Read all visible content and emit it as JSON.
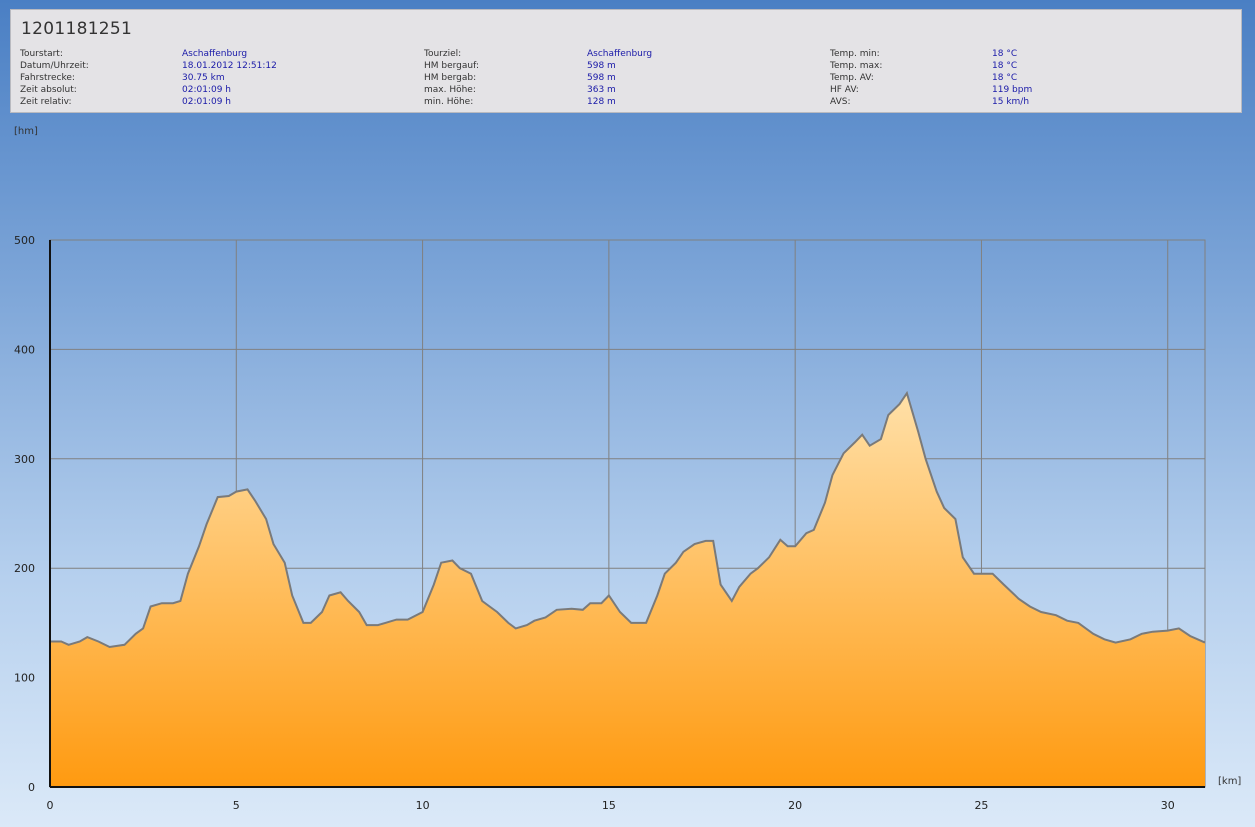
{
  "title": "1201181251",
  "info": {
    "col1": [
      {
        "label": "Tourstart:",
        "value": "Aschaffenburg"
      },
      {
        "label": "Datum/Uhrzeit:",
        "value": "18.01.2012 12:51:12"
      },
      {
        "label": "Fahrstrecke:",
        "value": "30.75 km"
      },
      {
        "label": "Zeit absolut:",
        "value": "02:01:09 h"
      },
      {
        "label": "Zeit relativ:",
        "value": "02:01:09 h"
      }
    ],
    "col2": [
      {
        "label": "Tourziel:",
        "value": "Aschaffenburg"
      },
      {
        "label": "HM bergauf:",
        "value": "598 m"
      },
      {
        "label": "HM bergab:",
        "value": "598 m"
      },
      {
        "label": "max. Höhe:",
        "value": "363 m"
      },
      {
        "label": "min. Höhe:",
        "value": "128 m"
      }
    ],
    "col3": [
      {
        "label": "Temp. min:",
        "value": "18 °C"
      },
      {
        "label": "Temp. max:",
        "value": "18 °C"
      },
      {
        "label": "Temp. AV:",
        "value": "18 °C"
      },
      {
        "label": "HF AV:",
        "value": "119 bpm"
      },
      {
        "label": "AVS:",
        "value": "15 km/h"
      }
    ]
  },
  "chart_data": {
    "type": "area",
    "xlabel": "[km]",
    "ylabel": "[hm]",
    "xlim": [
      0,
      31
    ],
    "ylim": [
      0,
      500
    ],
    "xticks": [
      0,
      5,
      10,
      15,
      20,
      25,
      30
    ],
    "yticks": [
      0,
      100,
      200,
      300,
      400,
      500
    ],
    "grid": true,
    "colors": {
      "fill_top": "#ffe0a8",
      "fill_bottom": "#ff9a10",
      "line": "#7a7a7a",
      "grid": "#808080"
    },
    "series": [
      {
        "x": [
          0,
          0.3,
          0.5,
          0.8,
          1,
          1.3,
          1.6,
          2,
          2.3,
          2.5,
          2.7,
          3,
          3.3,
          3.5,
          3.7,
          4,
          4.2,
          4.5,
          4.8,
          5,
          5.3,
          5.5,
          5.8,
          6,
          6.3,
          6.5,
          6.8,
          7,
          7.3,
          7.5,
          7.8,
          8,
          8.3,
          8.5,
          8.8,
          9,
          9.3,
          9.6,
          10,
          10.3,
          10.5,
          10.8,
          11,
          11.3,
          11.6,
          11.8,
          12,
          12.3,
          12.5,
          12.8,
          13,
          13.3,
          13.6,
          14,
          14.3,
          14.5,
          14.8,
          15,
          15.3,
          15.6,
          16,
          16.3,
          16.5,
          16.8,
          17,
          17.3,
          17.6,
          17.8,
          18,
          18.3,
          18.5,
          18.8,
          19,
          19.3,
          19.6,
          19.8,
          20,
          20.3,
          20.5,
          20.8,
          21,
          21.3,
          21.6,
          21.8,
          22,
          22.3,
          22.5,
          22.8,
          23,
          23.3,
          23.5,
          23.8,
          24,
          24.3,
          24.5,
          24.8,
          25,
          25.3,
          25.6,
          26,
          26.3,
          26.6,
          27,
          27.3,
          27.6,
          28,
          28.3,
          28.6,
          29,
          29.3,
          29.6,
          30,
          30.3,
          30.6,
          31
        ],
        "y": [
          133,
          133,
          130,
          133,
          137,
          133,
          128,
          130,
          140,
          145,
          165,
          168,
          168,
          170,
          195,
          220,
          240,
          265,
          266,
          270,
          272,
          262,
          245,
          222,
          205,
          175,
          150,
          150,
          160,
          175,
          178,
          170,
          160,
          148,
          148,
          150,
          153,
          153,
          160,
          185,
          205,
          207,
          200,
          195,
          170,
          165,
          160,
          150,
          145,
          148,
          152,
          155,
          162,
          163,
          162,
          168,
          168,
          175,
          160,
          150,
          150,
          175,
          195,
          205,
          215,
          222,
          225,
          225,
          185,
          170,
          183,
          195,
          200,
          210,
          226,
          220,
          220,
          232,
          235,
          260,
          285,
          305,
          315,
          322,
          312,
          318,
          340,
          350,
          360,
          325,
          300,
          270,
          255,
          245,
          210,
          195,
          195,
          195,
          185,
          172,
          165,
          160,
          157,
          152,
          150,
          140,
          135,
          132,
          135,
          140,
          142,
          143,
          145,
          138,
          132
        ]
      }
    ]
  }
}
